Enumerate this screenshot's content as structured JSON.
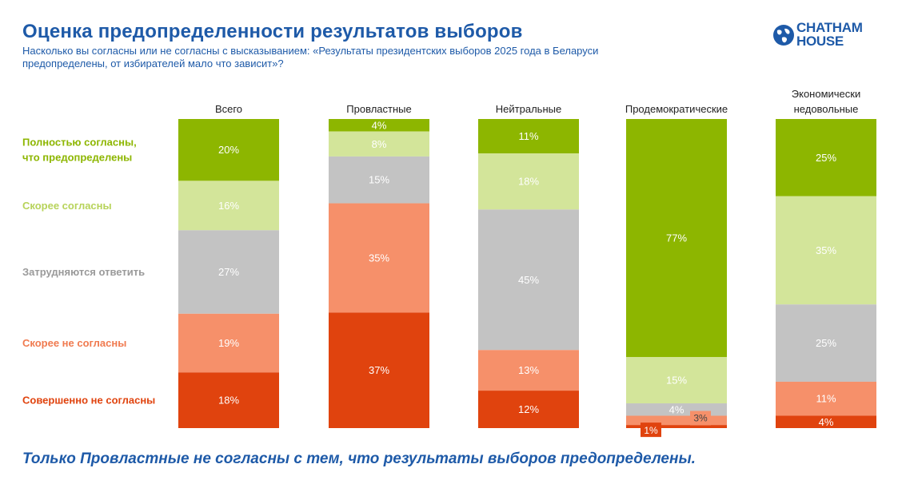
{
  "header": {
    "title": "Оценка предопределенности результатов выборов",
    "subtitle_line1": "Насколько вы согласны или не согласны с высказыванием: «Результаты президентских выборов 2025 года в Беларуси",
    "subtitle_line2": "предопределены, от избирателей мало что зависит»?"
  },
  "logo": {
    "line1": "CHATHAM",
    "line2": "HOUSE",
    "icon": "globe-icon",
    "color": "#1e5aa8"
  },
  "footer": {
    "text": "Только Провластные не согласны с тем, что результаты выборов предопределены."
  },
  "chart_data": {
    "type": "bar",
    "stacked": true,
    "percent": true,
    "categories": [
      "Всего",
      "Провластные",
      "Нейтральные",
      "Продемократические",
      "Экономически недовольные"
    ],
    "category_lines": [
      [
        "Всего"
      ],
      [
        "Провластные"
      ],
      [
        "Нейтральные"
      ],
      [
        "Продемократические"
      ],
      [
        "Экономически",
        "недовольные"
      ]
    ],
    "series": [
      {
        "name": "Полностью согласны, что предопределены",
        "name_lines": [
          "Полностью согласны,",
          "что предопределены"
        ],
        "color": "#8db600",
        "label_color": "#8db600",
        "values": [
          20,
          4,
          11,
          77,
          25
        ]
      },
      {
        "name": "Скорее согласны",
        "name_lines": [
          "Скорее согласны"
        ],
        "color": "#d3e59a",
        "label_color": "#b7d35a",
        "values": [
          16,
          8,
          18,
          15,
          35
        ]
      },
      {
        "name": "Затрудняются ответить",
        "name_lines": [
          "Затрудняются ответить"
        ],
        "color": "#c3c3c3",
        "label_color": "#9a9a9a",
        "values": [
          27,
          15,
          45,
          4,
          25
        ]
      },
      {
        "name": "Скорее не согласны",
        "name_lines": [
          "Скорее не согласны"
        ],
        "color": "#f6906a",
        "label_color": "#f07a4f",
        "values": [
          19,
          35,
          13,
          3,
          11
        ]
      },
      {
        "name": "Совершенно не согласны",
        "name_lines": [
          "Совершенно не согласны"
        ],
        "color": "#e0430e",
        "label_color": "#e0430e",
        "values": [
          18,
          37,
          12,
          1,
          4
        ]
      }
    ],
    "value_labels": [
      [
        "20%",
        "16%",
        "27%",
        "19%",
        "18%"
      ],
      [
        "4%",
        "8%",
        "15%",
        "35%",
        "37%"
      ],
      [
        "11%",
        "18%",
        "45%",
        "13%",
        "12%"
      ],
      [
        "77%",
        "15%",
        "4%",
        "3%",
        "1%"
      ],
      [
        "25%",
        "35%",
        "25%",
        "11%",
        "4%"
      ]
    ],
    "legend_position": "left",
    "grid": false
  }
}
